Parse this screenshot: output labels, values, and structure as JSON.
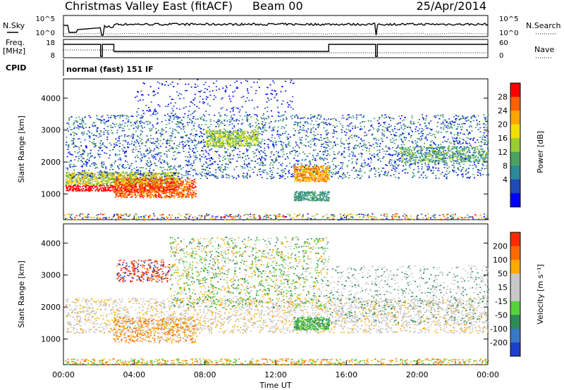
{
  "header": {
    "station": "Christmas Valley East (fitACF)",
    "beam": "Beam 00",
    "date": "25/Apr/2014"
  },
  "left_labels": {
    "nsky": "N.Sky",
    "freq": "Freq.",
    "freq_unit": "[MHz]",
    "cpid": "CPID"
  },
  "right_labels": {
    "nsearch": "N.Search",
    "nave": "Nave"
  },
  "cpid_text": "normal (fast) 151 IF",
  "colors": {
    "power": [
      "#0000ff",
      "#1f4bb8",
      "#2a8a9a",
      "#4aa25f",
      "#9acd32",
      "#f0e000",
      "#ffa500",
      "#ff6000",
      "#ff0000"
    ],
    "velocity": [
      "#1c3fc9",
      "#3878c8",
      "#2e8b57",
      "#55d33a",
      "#c8c8c8",
      "#c8c8c8",
      "#ffaa00",
      "#ff6a00",
      "#ff2a00",
      "#d40000"
    ]
  },
  "chart_data": [
    {
      "type": "line",
      "name": "noise-panel",
      "y_left_ticks": [
        "10^5",
        "10^0"
      ],
      "y_right_ticks": [
        "10^5",
        "10^0"
      ],
      "x_range": [
        0,
        24
      ]
    },
    {
      "type": "line",
      "name": "freq-nave-panel",
      "y_left_ticks": [
        "18",
        "8"
      ],
      "y_right_ticks": [
        "60",
        "0"
      ],
      "x_range": [
        0,
        24
      ]
    },
    {
      "type": "heatmap",
      "name": "power-panel",
      "ylabel": "Slant Range [km]",
      "yticks": [
        1000,
        2000,
        3000,
        4000
      ],
      "ylim": [
        200,
        4600
      ],
      "xlim": [
        0,
        24
      ],
      "colorbar_label": "Power [dB]",
      "colorbar_ticks": [
        "28",
        "24",
        "20",
        "16",
        "12",
        "8",
        "4"
      ]
    },
    {
      "type": "heatmap",
      "name": "velocity-panel",
      "ylabel": "Slant Range [km]",
      "yticks": [
        1000,
        2000,
        3000,
        4000
      ],
      "ylim": [
        200,
        4600
      ],
      "xlim": [
        0,
        24
      ],
      "xlabel": "Time UT",
      "xticks": [
        "00:00",
        "04:00",
        "08:00",
        "12:00",
        "16:00",
        "20:00",
        "00:00"
      ],
      "colorbar_label": "Velocity [m s⁻¹]",
      "colorbar_ticks": [
        "200",
        "100",
        "50",
        "15",
        "-15",
        "-50",
        "-100",
        "-200"
      ]
    }
  ]
}
